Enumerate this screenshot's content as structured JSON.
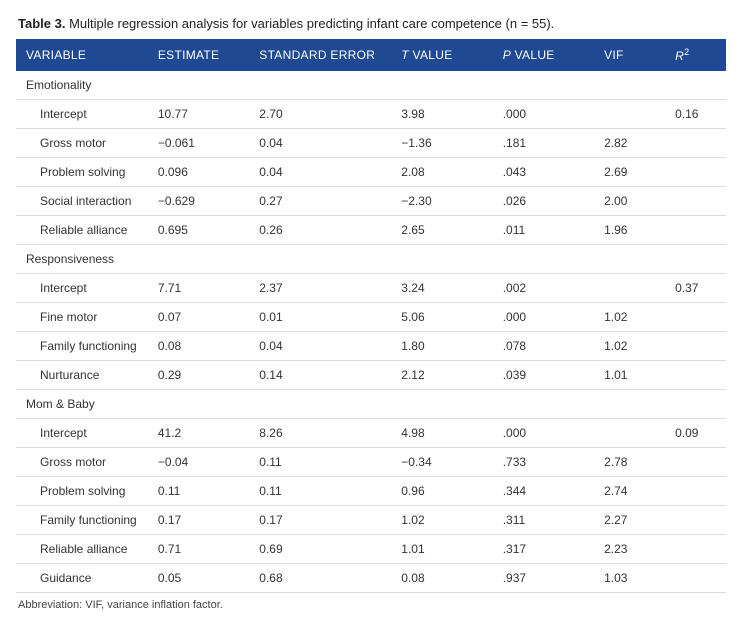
{
  "caption_label": "Table 3.",
  "caption_text": "Multiple regression analysis for variables predicting infant care competence (n = 55).",
  "columns": {
    "variable": "VARIABLE",
    "estimate": "ESTIMATE",
    "stderr": "STANDARD ERROR",
    "tvalue_prefix": "T",
    "tvalue_rest": " VALUE",
    "pvalue_prefix": "P",
    "pvalue_rest": " VALUE",
    "vif": "VIF",
    "r2_prefix": "R",
    "r2_sup": "2"
  },
  "colors": {
    "header_bg": "#1f4a93",
    "header_fg": "#ffffff",
    "row_border": "#d9dde2",
    "text": "#333333",
    "background": "#ffffff"
  },
  "sections": [
    {
      "label": "Emotionality",
      "rows": [
        {
          "variable": "Intercept",
          "estimate": "10.77",
          "stderr": "2.70",
          "t": "3.98",
          "p": ".000",
          "vif": "",
          "r2": "0.16"
        },
        {
          "variable": "Gross motor",
          "estimate": "−0.061",
          "stderr": "0.04",
          "t": "−1.36",
          "p": ".181",
          "vif": "2.82",
          "r2": ""
        },
        {
          "variable": "Problem solving",
          "estimate": "0.096",
          "stderr": "0.04",
          "t": "2.08",
          "p": ".043",
          "vif": "2.69",
          "r2": ""
        },
        {
          "variable": "Social interaction",
          "estimate": "−0.629",
          "stderr": "0.27",
          "t": "−2.30",
          "p": ".026",
          "vif": "2.00",
          "r2": ""
        },
        {
          "variable": "Reliable alliance",
          "estimate": "0.695",
          "stderr": "0.26",
          "t": "2.65",
          "p": ".011",
          "vif": "1.96",
          "r2": ""
        }
      ]
    },
    {
      "label": "Responsiveness",
      "rows": [
        {
          "variable": "Intercept",
          "estimate": "7.71",
          "stderr": "2.37",
          "t": "3.24",
          "p": ".002",
          "vif": "",
          "r2": "0.37"
        },
        {
          "variable": "Fine motor",
          "estimate": "0.07",
          "stderr": "0.01",
          "t": "5.06",
          "p": ".000",
          "vif": "1.02",
          "r2": ""
        },
        {
          "variable": "Family functioning",
          "estimate": "0.08",
          "stderr": "0.04",
          "t": "1.80",
          "p": ".078",
          "vif": "1.02",
          "r2": ""
        },
        {
          "variable": "Nurturance",
          "estimate": "0.29",
          "stderr": "0.14",
          "t": "2.12",
          "p": ".039",
          "vif": "1.01",
          "r2": ""
        }
      ]
    },
    {
      "label": "Mom & Baby",
      "rows": [
        {
          "variable": "Intercept",
          "estimate": "41.2",
          "stderr": "8.26",
          "t": "4.98",
          "p": ".000",
          "vif": "",
          "r2": "0.09"
        },
        {
          "variable": "Gross motor",
          "estimate": "−0.04",
          "stderr": "0.11",
          "t": "−0.34",
          "p": ".733",
          "vif": "2.78",
          "r2": ""
        },
        {
          "variable": "Problem solving",
          "estimate": "0.11",
          "stderr": "0.11",
          "t": "0.96",
          "p": ".344",
          "vif": "2.74",
          "r2": ""
        },
        {
          "variable": "Family functioning",
          "estimate": "0.17",
          "stderr": "0.17",
          "t": "1.02",
          "p": ".311",
          "vif": "2.27",
          "r2": ""
        },
        {
          "variable": "Reliable alliance",
          "estimate": "0.71",
          "stderr": "0.69",
          "t": "1.01",
          "p": ".317",
          "vif": "2.23",
          "r2": ""
        },
        {
          "variable": "Guidance",
          "estimate": "0.05",
          "stderr": "0.68",
          "t": "0.08",
          "p": ".937",
          "vif": "1.03",
          "r2": ""
        }
      ]
    }
  ],
  "footnote": "Abbreviation: VIF, variance inflation factor."
}
